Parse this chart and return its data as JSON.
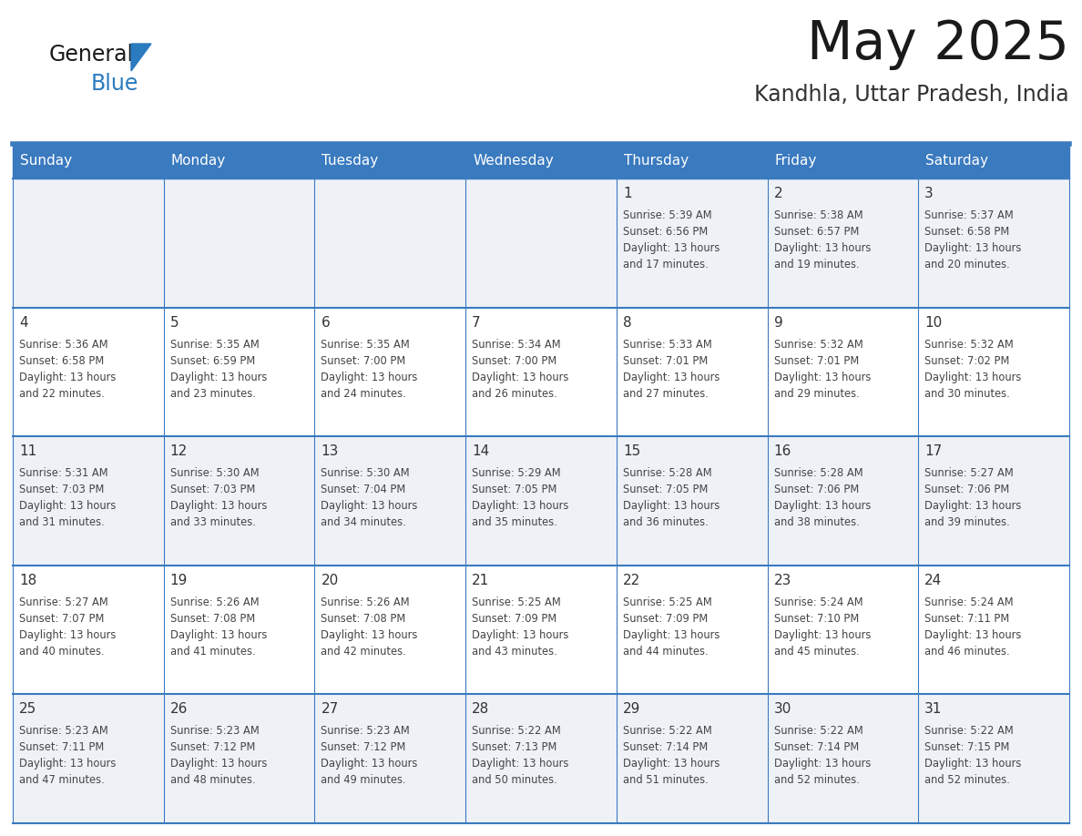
{
  "title": "May 2025",
  "subtitle": "Kandhla, Uttar Pradesh, India",
  "header_bg": "#3a7abf",
  "header_text_color": "#ffffff",
  "cell_bg_light": "#eef2f7",
  "cell_bg_white": "#ffffff",
  "day_headers": [
    "Sunday",
    "Monday",
    "Tuesday",
    "Wednesday",
    "Thursday",
    "Friday",
    "Saturday"
  ],
  "title_color": "#1a1a1a",
  "subtitle_color": "#333333",
  "day_number_color": "#333333",
  "cell_text_color": "#444444",
  "grid_line_color": "#3a7abf",
  "logo_general_color": "#1a1a1a",
  "logo_blue_color": "#2b7bbf",
  "logo_triangle_color": "#2b7bbf",
  "calendar": [
    [
      {
        "day": "",
        "sunrise": "",
        "sunset": "",
        "daylight": ""
      },
      {
        "day": "",
        "sunrise": "",
        "sunset": "",
        "daylight": ""
      },
      {
        "day": "",
        "sunrise": "",
        "sunset": "",
        "daylight": ""
      },
      {
        "day": "",
        "sunrise": "",
        "sunset": "",
        "daylight": ""
      },
      {
        "day": "1",
        "sunrise": "5:39 AM",
        "sunset": "6:56 PM",
        "daylight": "13 hours and 17 minutes."
      },
      {
        "day": "2",
        "sunrise": "5:38 AM",
        "sunset": "6:57 PM",
        "daylight": "13 hours and 19 minutes."
      },
      {
        "day": "3",
        "sunrise": "5:37 AM",
        "sunset": "6:58 PM",
        "daylight": "13 hours and 20 minutes."
      }
    ],
    [
      {
        "day": "4",
        "sunrise": "5:36 AM",
        "sunset": "6:58 PM",
        "daylight": "13 hours and 22 minutes."
      },
      {
        "day": "5",
        "sunrise": "5:35 AM",
        "sunset": "6:59 PM",
        "daylight": "13 hours and 23 minutes."
      },
      {
        "day": "6",
        "sunrise": "5:35 AM",
        "sunset": "7:00 PM",
        "daylight": "13 hours and 24 minutes."
      },
      {
        "day": "7",
        "sunrise": "5:34 AM",
        "sunset": "7:00 PM",
        "daylight": "13 hours and 26 minutes."
      },
      {
        "day": "8",
        "sunrise": "5:33 AM",
        "sunset": "7:01 PM",
        "daylight": "13 hours and 27 minutes."
      },
      {
        "day": "9",
        "sunrise": "5:32 AM",
        "sunset": "7:01 PM",
        "daylight": "13 hours and 29 minutes."
      },
      {
        "day": "10",
        "sunrise": "5:32 AM",
        "sunset": "7:02 PM",
        "daylight": "13 hours and 30 minutes."
      }
    ],
    [
      {
        "day": "11",
        "sunrise": "5:31 AM",
        "sunset": "7:03 PM",
        "daylight": "13 hours and 31 minutes."
      },
      {
        "day": "12",
        "sunrise": "5:30 AM",
        "sunset": "7:03 PM",
        "daylight": "13 hours and 33 minutes."
      },
      {
        "day": "13",
        "sunrise": "5:30 AM",
        "sunset": "7:04 PM",
        "daylight": "13 hours and 34 minutes."
      },
      {
        "day": "14",
        "sunrise": "5:29 AM",
        "sunset": "7:05 PM",
        "daylight": "13 hours and 35 minutes."
      },
      {
        "day": "15",
        "sunrise": "5:28 AM",
        "sunset": "7:05 PM",
        "daylight": "13 hours and 36 minutes."
      },
      {
        "day": "16",
        "sunrise": "5:28 AM",
        "sunset": "7:06 PM",
        "daylight": "13 hours and 38 minutes."
      },
      {
        "day": "17",
        "sunrise": "5:27 AM",
        "sunset": "7:06 PM",
        "daylight": "13 hours and 39 minutes."
      }
    ],
    [
      {
        "day": "18",
        "sunrise": "5:27 AM",
        "sunset": "7:07 PM",
        "daylight": "13 hours and 40 minutes."
      },
      {
        "day": "19",
        "sunrise": "5:26 AM",
        "sunset": "7:08 PM",
        "daylight": "13 hours and 41 minutes."
      },
      {
        "day": "20",
        "sunrise": "5:26 AM",
        "sunset": "7:08 PM",
        "daylight": "13 hours and 42 minutes."
      },
      {
        "day": "21",
        "sunrise": "5:25 AM",
        "sunset": "7:09 PM",
        "daylight": "13 hours and 43 minutes."
      },
      {
        "day": "22",
        "sunrise": "5:25 AM",
        "sunset": "7:09 PM",
        "daylight": "13 hours and 44 minutes."
      },
      {
        "day": "23",
        "sunrise": "5:24 AM",
        "sunset": "7:10 PM",
        "daylight": "13 hours and 45 minutes."
      },
      {
        "day": "24",
        "sunrise": "5:24 AM",
        "sunset": "7:11 PM",
        "daylight": "13 hours and 46 minutes."
      }
    ],
    [
      {
        "day": "25",
        "sunrise": "5:23 AM",
        "sunset": "7:11 PM",
        "daylight": "13 hours and 47 minutes."
      },
      {
        "day": "26",
        "sunrise": "5:23 AM",
        "sunset": "7:12 PM",
        "daylight": "13 hours and 48 minutes."
      },
      {
        "day": "27",
        "sunrise": "5:23 AM",
        "sunset": "7:12 PM",
        "daylight": "13 hours and 49 minutes."
      },
      {
        "day": "28",
        "sunrise": "5:22 AM",
        "sunset": "7:13 PM",
        "daylight": "13 hours and 50 minutes."
      },
      {
        "day": "29",
        "sunrise": "5:22 AM",
        "sunset": "7:14 PM",
        "daylight": "13 hours and 51 minutes."
      },
      {
        "day": "30",
        "sunrise": "5:22 AM",
        "sunset": "7:14 PM",
        "daylight": "13 hours and 52 minutes."
      },
      {
        "day": "31",
        "sunrise": "5:22 AM",
        "sunset": "7:15 PM",
        "daylight": "13 hours and 52 minutes."
      }
    ]
  ]
}
